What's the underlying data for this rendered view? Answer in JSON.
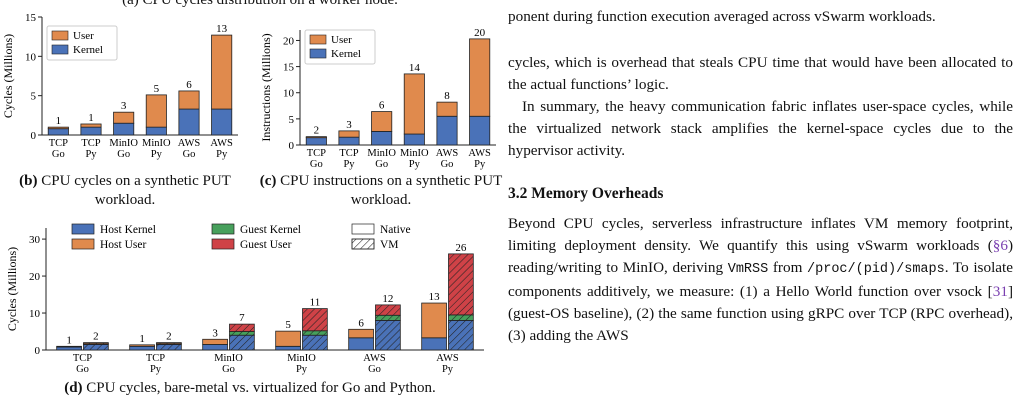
{
  "top_caption": "(a) CPU cycles distribution on a worker node.",
  "colors": {
    "kernel": "#4a72b8",
    "user": "#e08a4d",
    "guest_kernel": "#47a05c",
    "guest_user": "#cf4247"
  },
  "captions": {
    "b_label": "(b)",
    "b_text": " CPU cycles on a synthetic PUT workload.",
    "c_label": "(c)",
    "c_text": " CPU instructions on a synthetic PUT workload.",
    "d_label": "(d)",
    "d_text": " CPU cycles, bare-metal vs. virtualized for Go and Python."
  },
  "chart_data": [
    {
      "id": "b",
      "type": "bar",
      "stacked": true,
      "ylabel": "Cycles (Millions)",
      "ylim": [
        0,
        15
      ],
      "yticks": [
        0,
        5,
        10,
        15
      ],
      "categories": [
        [
          "TCP",
          "Go"
        ],
        [
          "TCP",
          "Py"
        ],
        [
          "MinIO",
          "Go"
        ],
        [
          "MinIO",
          "Py"
        ],
        [
          "AWS",
          "Go"
        ],
        [
          "AWS",
          "Py"
        ]
      ],
      "series": [
        {
          "name": "Kernel",
          "values": [
            0.8,
            1.0,
            1.5,
            1.0,
            3.3,
            3.3
          ]
        },
        {
          "name": "User",
          "values": [
            0.2,
            0.4,
            1.4,
            4.1,
            2.3,
            9.4
          ]
        }
      ],
      "totals": [
        "1",
        "1",
        "3",
        "5",
        "6",
        "13"
      ],
      "legend": "top-left"
    },
    {
      "id": "c",
      "type": "bar",
      "stacked": true,
      "ylabel": "Instructions (Millions)",
      "ylim": [
        0,
        22
      ],
      "yticks": [
        0,
        5,
        10,
        15,
        20
      ],
      "categories": [
        [
          "TCP",
          "Go"
        ],
        [
          "TCP",
          "Py"
        ],
        [
          "MinIO",
          "Go"
        ],
        [
          "MinIO",
          "Py"
        ],
        [
          "AWS",
          "Go"
        ],
        [
          "AWS",
          "Py"
        ]
      ],
      "series": [
        {
          "name": "Kernel",
          "values": [
            1.4,
            1.5,
            2.6,
            2.1,
            5.5,
            5.5
          ]
        },
        {
          "name": "User",
          "values": [
            0.2,
            1.2,
            3.8,
            11.5,
            2.7,
            14.8
          ]
        }
      ],
      "totals": [
        "2",
        "3",
        "6",
        "14",
        "8",
        "20"
      ],
      "legend": "top-left"
    },
    {
      "id": "d",
      "type": "bar",
      "stacked": true,
      "ylabel": "Cycles (Millions)",
      "ylim": [
        0,
        33
      ],
      "yticks": [
        0,
        10,
        20,
        30
      ],
      "categories": [
        [
          "TCP",
          "Go"
        ],
        [
          "TCP",
          "Py"
        ],
        [
          "MinIO",
          "Go"
        ],
        [
          "MinIO",
          "Py"
        ],
        [
          "AWS",
          "Go"
        ],
        [
          "AWS",
          "Py"
        ]
      ],
      "series_native": [
        {
          "name": "Host Kernel",
          "values": [
            0.8,
            1.0,
            1.5,
            1.0,
            3.3,
            3.3
          ]
        },
        {
          "name": "Host User",
          "values": [
            0.2,
            0.4,
            1.4,
            4.1,
            2.3,
            9.4
          ]
        }
      ],
      "series_vm": [
        {
          "name": "Host Kernel",
          "values": [
            1.5,
            1.5,
            4.0,
            4.0,
            8.0,
            8.0
          ]
        },
        {
          "name": "Guest Kernel",
          "values": [
            0.2,
            0.2,
            1.0,
            1.2,
            1.4,
            1.5
          ]
        },
        {
          "name": "Host User",
          "values": [
            0.3,
            0.3,
            0.0,
            0.0,
            0.0,
            0.0
          ]
        },
        {
          "name": "Guest User",
          "values": [
            0.0,
            0.0,
            2.0,
            6.0,
            2.8,
            16.5
          ]
        }
      ],
      "totals_native": [
        "1",
        "1",
        "3",
        "5",
        "6",
        "13"
      ],
      "totals_vm": [
        "2",
        "2",
        "7",
        "11",
        "12",
        "26"
      ],
      "legend_entries": [
        "Host Kernel",
        "Guest Kernel",
        "Native",
        "Host User",
        "Guest User",
        "VM"
      ],
      "legend": "top"
    }
  ],
  "right": {
    "frag1": "ponent during function execution averaged across vSwarm workloads.",
    "para1": "cycles, which is overhead that steals CPU time that would have been allocated to the actual functions’ logic.",
    "para2": "In summary, the heavy communication fabric inflates user-space cycles, while the virtualized network stack amplifies the kernel-space cycles due to the hypervisor activity.",
    "heading": "3.2   Memory Overheads",
    "p3a": "Beyond CPU cycles, serverless infrastructure inflates VM memory footprint, limiting deployment density. We quantify this using vSwarm workloads (",
    "p3ref": "§6",
    "p3b": ") reading/writing to MinIO, deriving ",
    "p3code1": "VmRSS",
    "p3c": " from ",
    "p3code2": "/proc/(pid)/smaps",
    "p3d": ". To isolate components additively, we measure: (1) a Hello World function over vsock [",
    "p3cite": "31",
    "p3e": "] (guest-OS baseline), (2) the same function using gRPC over TCP (RPC overhead), (3) adding the AWS"
  }
}
